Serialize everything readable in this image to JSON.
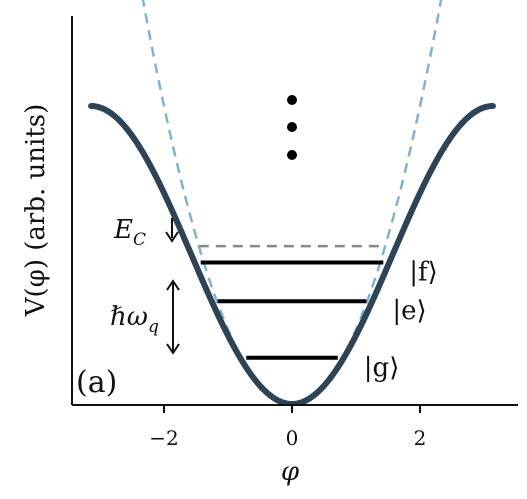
{
  "chart_data": {
    "type": "line",
    "panel_label": "(a)",
    "xlabel": "φ",
    "ylabel": "V(φ) (arb. units)",
    "xlim": [
      -3.4,
      3.4
    ],
    "ylim": [
      0,
      2.1
    ],
    "x_ticks": [
      -2,
      0,
      2
    ],
    "x_tick_labels": [
      "−2",
      "0",
      "2"
    ],
    "grid": false,
    "series": [
      {
        "kind": "potential",
        "formula": "1 - cos(φ)",
        "x_range": [
          -3.14,
          3.14
        ],
        "color": "#2d4356"
      },
      {
        "kind": "harmonic",
        "formula": "φ^2 / 2",
        "x_range": [
          -3.4,
          3.4
        ],
        "color": "#7fb2d0"
      }
    ],
    "levels": [
      {
        "label": "|g⟩",
        "y": 0.31
      },
      {
        "label": "|e⟩",
        "y": 0.69
      },
      {
        "label": "|f⟩",
        "y": 0.95
      }
    ],
    "harmonic_level": {
      "y": 1.06,
      "color": "#888888"
    },
    "annotations": {
      "charging_energy": "EC↓",
      "level_spacing": "ℏωq",
      "ellipsis": "⋮"
    }
  }
}
